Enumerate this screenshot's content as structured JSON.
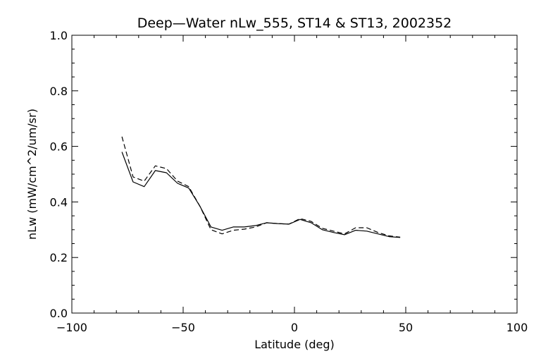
{
  "chart_data": {
    "type": "line",
    "title": "Deep—Water nLw_555, ST14 & ST13, 2002352",
    "xlabel": "Latitude (deg)",
    "ylabel": "nLw (mW/cm^2/um/sr)",
    "xlim": [
      -100,
      100
    ],
    "ylim": [
      0.0,
      1.0
    ],
    "x_ticks": [
      -100,
      -50,
      0,
      50,
      100
    ],
    "x_tick_labels": [
      "−100",
      "−50",
      "0",
      "50",
      "100"
    ],
    "y_ticks": [
      0.0,
      0.2,
      0.4,
      0.6,
      0.8,
      1.0
    ],
    "y_tick_labels": [
      "0.0",
      "0.2",
      "0.4",
      "0.6",
      "0.8",
      "1.0"
    ],
    "grid": false,
    "legend": "none",
    "series": [
      {
        "line_style": "solid",
        "color": "#000000",
        "points": [
          [
            -77.5,
            0.58
          ],
          [
            -72.5,
            0.472
          ],
          [
            -67.5,
            0.455
          ],
          [
            -62.5,
            0.513
          ],
          [
            -57.5,
            0.505
          ],
          [
            -52.5,
            0.467
          ],
          [
            -47.5,
            0.45
          ],
          [
            -42.5,
            0.385
          ],
          [
            -37.5,
            0.31
          ],
          [
            -32.5,
            0.298
          ],
          [
            -27.5,
            0.31
          ],
          [
            -22.5,
            0.31
          ],
          [
            -17.5,
            0.315
          ],
          [
            -12.5,
            0.325
          ],
          [
            -7.5,
            0.322
          ],
          [
            -2.5,
            0.32
          ],
          [
            2.5,
            0.337
          ],
          [
            7.5,
            0.325
          ],
          [
            12.5,
            0.3
          ],
          [
            17.5,
            0.29
          ],
          [
            22.5,
            0.282
          ],
          [
            27.5,
            0.298
          ],
          [
            32.5,
            0.295
          ],
          [
            37.5,
            0.285
          ],
          [
            42.5,
            0.275
          ],
          [
            47.5,
            0.272
          ]
        ]
      },
      {
        "line_style": "dashed",
        "color": "#000000",
        "points": [
          [
            -77.5,
            0.635
          ],
          [
            -72.5,
            0.49
          ],
          [
            -67.5,
            0.475
          ],
          [
            -62.5,
            0.53
          ],
          [
            -57.5,
            0.52
          ],
          [
            -52.5,
            0.475
          ],
          [
            -47.5,
            0.455
          ],
          [
            -42.5,
            0.385
          ],
          [
            -37.5,
            0.3
          ],
          [
            -32.5,
            0.285
          ],
          [
            -27.5,
            0.298
          ],
          [
            -22.5,
            0.302
          ],
          [
            -17.5,
            0.31
          ],
          [
            -12.5,
            0.325
          ],
          [
            -7.5,
            0.322
          ],
          [
            -2.5,
            0.32
          ],
          [
            2.5,
            0.34
          ],
          [
            7.5,
            0.33
          ],
          [
            12.5,
            0.305
          ],
          [
            17.5,
            0.295
          ],
          [
            22.5,
            0.285
          ],
          [
            27.5,
            0.307
          ],
          [
            32.5,
            0.307
          ],
          [
            37.5,
            0.29
          ],
          [
            42.5,
            0.278
          ],
          [
            47.5,
            0.273
          ]
        ]
      }
    ]
  }
}
